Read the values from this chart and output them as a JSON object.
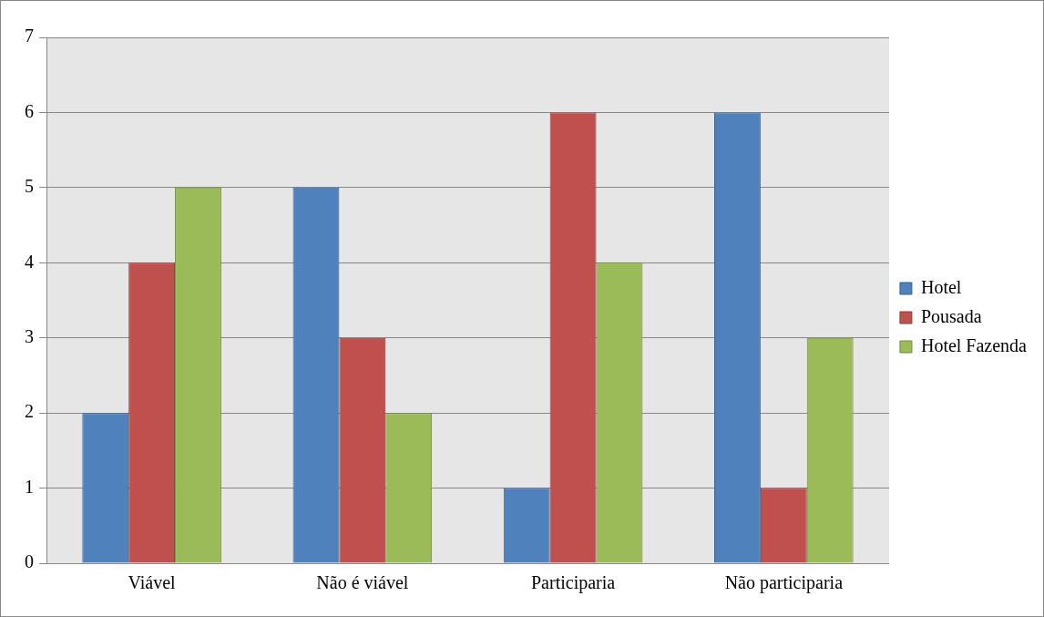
{
  "chart_data": {
    "type": "bar",
    "categories": [
      "Viável",
      "Não é viável",
      "Participaria",
      "Não participaria"
    ],
    "series": [
      {
        "name": "Hotel",
        "color": "#4f81bd",
        "values": [
          2,
          5,
          1,
          6
        ]
      },
      {
        "name": "Pousada",
        "color": "#c0504d",
        "values": [
          4,
          3,
          6,
          1
        ]
      },
      {
        "name": "Hotel Fazenda",
        "color": "#9bbb59",
        "values": [
          5,
          2,
          4,
          3
        ]
      }
    ],
    "ylim": [
      0,
      7
    ],
    "yticks": [
      0,
      1,
      2,
      3,
      4,
      5,
      6,
      7
    ],
    "grid": "y",
    "legend": "right"
  }
}
